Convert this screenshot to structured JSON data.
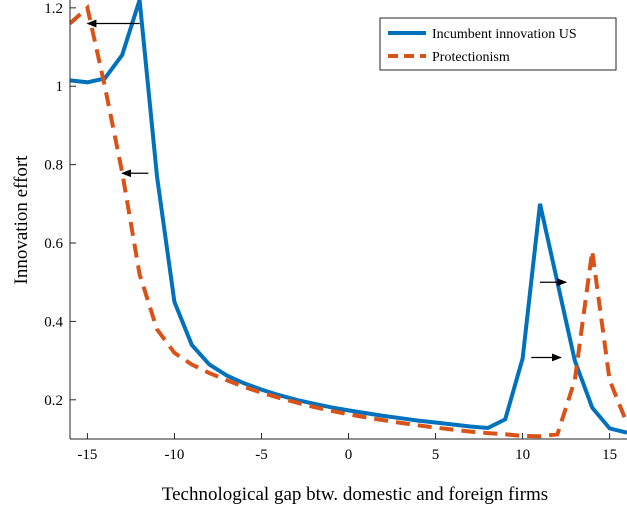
{
  "chart_data": {
    "type": "line",
    "title": "",
    "xlabel": "Technological gap btw. domestic and foreign firms",
    "ylabel": "Innovation effort",
    "xlim": [
      -16,
      16
    ],
    "ylim": [
      0.1,
      1.22
    ],
    "xticks": [
      -15,
      -10,
      -5,
      0,
      5,
      10,
      15
    ],
    "yticks": [
      0.2,
      0.4,
      0.6,
      0.8,
      1,
      1.2
    ],
    "xtick_labels": [
      "-15",
      "-10",
      "-5",
      "0",
      "5",
      "10",
      "15"
    ],
    "ytick_labels": [
      "0.2",
      "0.4",
      "0.6",
      "0.8",
      "1",
      "1.2"
    ],
    "grid": false,
    "legend_position": "top-right",
    "series": [
      {
        "name": "Incumbent innovation US",
        "color": "#0072BD",
        "style": "solid",
        "x": [
          -16,
          -15,
          -14,
          -13,
          -12,
          -11,
          -10,
          -9,
          -8,
          -7,
          -6,
          -5,
          -4,
          -3,
          -2,
          -1,
          0,
          1,
          2,
          3,
          4,
          5,
          6,
          7,
          8,
          9,
          10,
          11,
          12,
          13,
          14,
          15,
          16
        ],
        "y": [
          1.015,
          1.01,
          1.02,
          1.08,
          1.22,
          0.77,
          0.45,
          0.34,
          0.29,
          0.262,
          0.242,
          0.226,
          0.212,
          0.2,
          0.19,
          0.181,
          0.173,
          0.166,
          0.159,
          0.153,
          0.147,
          0.142,
          0.137,
          0.132,
          0.128,
          0.15,
          0.305,
          0.7,
          0.5,
          0.3,
          0.18,
          0.127,
          0.116
        ]
      },
      {
        "name": "Protectionism",
        "color": "#D95319",
        "style": "dashed",
        "x": [
          -16,
          -15,
          -14,
          -13,
          -12,
          -11,
          -10,
          -9,
          -8,
          -7,
          -6,
          -5,
          -4,
          -3,
          -2,
          -1,
          0,
          1,
          2,
          3,
          4,
          5,
          6,
          7,
          8,
          9,
          10,
          11,
          12,
          13,
          14,
          15,
          16
        ],
        "y": [
          1.16,
          1.2,
          1.0,
          0.78,
          0.52,
          0.38,
          0.32,
          0.29,
          0.268,
          0.25,
          0.233,
          0.218,
          0.205,
          0.193,
          0.182,
          0.172,
          0.163,
          0.155,
          0.148,
          0.141,
          0.135,
          0.129,
          0.124,
          0.119,
          0.115,
          0.112,
          0.108,
          0.107,
          0.112,
          0.25,
          0.58,
          0.25,
          0.14
        ]
      }
    ],
    "annotations": [
      {
        "type": "arrow",
        "from": [
          -12,
          1.16
        ],
        "to": [
          -15,
          1.16
        ]
      },
      {
        "type": "arrow",
        "from": [
          -11.5,
          0.778
        ],
        "to": [
          -13,
          0.778
        ]
      },
      {
        "type": "arrow",
        "from": [
          11,
          0.5
        ],
        "to": [
          12.5,
          0.5
        ]
      },
      {
        "type": "arrow",
        "from": [
          10.5,
          0.308
        ],
        "to": [
          12.2,
          0.308
        ]
      }
    ]
  }
}
